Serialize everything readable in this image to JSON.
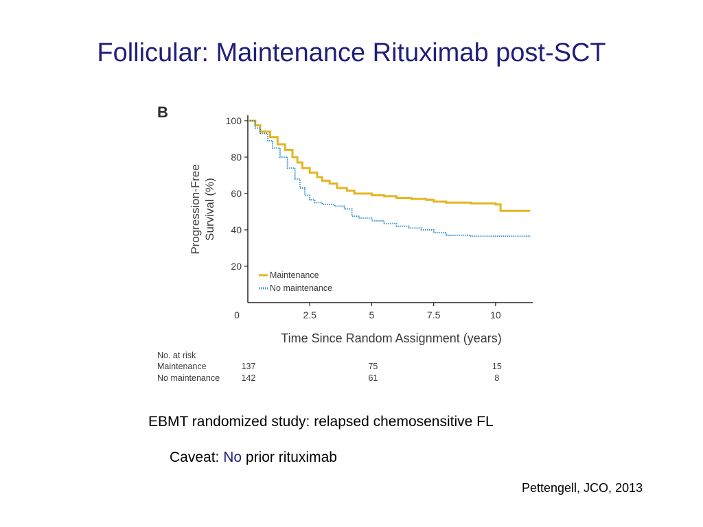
{
  "slide": {
    "title": "Follicular: Maintenance Rituximab post-SCT",
    "caption_line1": "EBMT randomized study: relapsed chemosensitive FL",
    "caption_line2_prefix": "Caveat: ",
    "caption_line2_highlight": "No",
    "caption_line2_suffix": " prior rituximab",
    "citation": "Pettengell, JCO, 2013"
  },
  "colors": {
    "title": "#1f1f7a",
    "maintenance": "#e4b522",
    "no_maintenance": "#2f8fd0",
    "axis": "#222222",
    "panel_text": "#3a3a3a"
  },
  "chart_data": {
    "type": "line",
    "panel_label": "B",
    "xlabel": "Time Since Random Assignment (years)",
    "ylabel_line1": "Progression-Free",
    "ylabel_line2": "Survival (%)",
    "xlim": [
      0,
      11.5
    ],
    "ylim": [
      0,
      103
    ],
    "x_ticks": [
      0,
      2.5,
      5,
      7.5,
      10
    ],
    "x_tick_labels": [
      "0",
      "2.5",
      "5",
      "7.5",
      "10"
    ],
    "y_ticks": [
      20,
      40,
      60,
      80,
      100
    ],
    "y_tick_labels": [
      "20",
      "40",
      "60",
      "80",
      "100"
    ],
    "legend_position": "bottom-left",
    "series": [
      {
        "name": "Maintenance",
        "style": "solid",
        "x": [
          0,
          0.3,
          0.5,
          0.9,
          1.2,
          1.5,
          1.8,
          2.0,
          2.2,
          2.5,
          2.8,
          3.0,
          3.3,
          3.6,
          4.0,
          4.3,
          5.0,
          5.5,
          6.0,
          6.6,
          7.2,
          7.5,
          8.0,
          9.0,
          9.5,
          10.0,
          10.2,
          11.4
        ],
        "y": [
          100,
          97.5,
          94,
          91,
          87,
          84,
          80,
          77,
          74,
          71.5,
          69,
          67,
          65.5,
          63,
          61.5,
          60,
          59,
          58.5,
          57.5,
          57,
          56.5,
          55.5,
          55,
          54.5,
          54.5,
          54,
          50.5,
          50.5
        ]
      },
      {
        "name": "No maintenance",
        "style": "dotted",
        "x": [
          0,
          0.3,
          0.5,
          0.8,
          1.0,
          1.3,
          1.6,
          1.9,
          2.1,
          2.3,
          2.5,
          2.7,
          3.0,
          3.5,
          3.9,
          4.2,
          4.5,
          5.0,
          5.5,
          6.0,
          6.5,
          7.0,
          7.5,
          8.0,
          9.0,
          10.0,
          11.4
        ],
        "y": [
          100,
          96,
          93,
          89,
          85,
          80,
          74,
          68,
          63,
          59,
          56.5,
          55,
          54,
          53,
          51.5,
          47.5,
          46.5,
          45,
          43.5,
          42,
          41,
          40,
          38.5,
          37,
          36.5,
          36.5,
          36.5
        ]
      }
    ],
    "risk_table": {
      "header": "No. at risk",
      "rows": [
        {
          "label": "Maintenance",
          "values": [
            "137",
            "75",
            "15"
          ]
        },
        {
          "label": "No maintenance",
          "values": [
            "142",
            "61",
            "8"
          ]
        }
      ],
      "value_x": [
        0,
        5,
        10
      ]
    }
  }
}
